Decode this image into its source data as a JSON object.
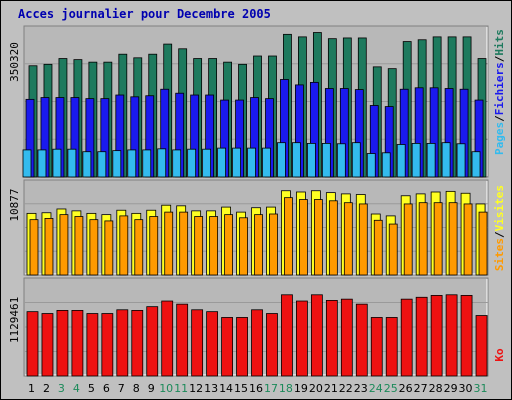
{
  "title": "Acces journalier pour Decembre 2005",
  "colors": {
    "background": "#c0c0c0",
    "plot_bg": "#b8b8b8",
    "pages": "#33bbee",
    "fichiers": "#1a1aee",
    "hits": "#1e7a5e",
    "visites": "#ffff22",
    "sites": "#ff9a00",
    "ko": "#ee1111",
    "weekday_label": "#000000",
    "weekend_label": "#1c8a5a"
  },
  "chart_data": [
    {
      "type": "bar",
      "panel": "hits",
      "ylabel_value": "350320",
      "ymax": 350320,
      "categories": [
        "1",
        "2",
        "3",
        "4",
        "5",
        "6",
        "7",
        "8",
        "9",
        "10",
        "11",
        "12",
        "13",
        "14",
        "15",
        "16",
        "17",
        "18",
        "19",
        "20",
        "21",
        "22",
        "23",
        "24",
        "25",
        "26",
        "27",
        "28",
        "29",
        "30",
        "31"
      ],
      "series": [
        {
          "name": "Pages",
          "values": [
            75000,
            75000,
            77000,
            77000,
            70000,
            70000,
            73000,
            75000,
            75000,
            78000,
            75000,
            77000,
            77000,
            80000,
            80000,
            80000,
            80000,
            95000,
            95000,
            93000,
            93000,
            92000,
            95000,
            65000,
            67000,
            90000,
            93000,
            93000,
            95000,
            92000,
            70000
          ]
        },
        {
          "name": "Fichiers",
          "values": [
            215000,
            220000,
            220000,
            220000,
            217000,
            217000,
            227000,
            222000,
            225000,
            243000,
            232000,
            227000,
            227000,
            213000,
            213000,
            220000,
            217000,
            270000,
            255000,
            262000,
            245000,
            245000,
            242000,
            198000,
            195000,
            243000,
            247000,
            247000,
            245000,
            243000,
            213000
          ]
        },
        {
          "name": "Hits",
          "values": [
            308000,
            312000,
            328000,
            325000,
            318000,
            318000,
            340000,
            330000,
            340000,
            368000,
            355000,
            328000,
            328000,
            318000,
            312000,
            335000,
            335000,
            395000,
            388000,
            400000,
            383000,
            385000,
            385000,
            305000,
            300000,
            375000,
            380000,
            388000,
            388000,
            388000,
            328000
          ]
        }
      ]
    },
    {
      "type": "bar",
      "panel": "visits",
      "ylabel_value": "10877",
      "ymax": 10877,
      "categories": [
        "1",
        "2",
        "3",
        "4",
        "5",
        "6",
        "7",
        "8",
        "9",
        "10",
        "11",
        "12",
        "13",
        "14",
        "15",
        "16",
        "17",
        "18",
        "19",
        "20",
        "21",
        "22",
        "23",
        "24",
        "25",
        "26",
        "27",
        "28",
        "29",
        "30",
        "31"
      ],
      "series": [
        {
          "name": "Visites",
          "values": [
            9800,
            9900,
            10500,
            10200,
            9800,
            9600,
            10300,
            9800,
            10300,
            11100,
            11000,
            10200,
            10200,
            10800,
            10000,
            10700,
            10800,
            13400,
            13200,
            13400,
            13100,
            12900,
            12800,
            9700,
            9400,
            12600,
            12900,
            13200,
            13300,
            13000,
            11300
          ]
        },
        {
          "name": "Sites",
          "values": [
            8800,
            9000,
            9600,
            9300,
            8800,
            8600,
            9400,
            8800,
            9300,
            10000,
            10000,
            9300,
            9300,
            9600,
            9100,
            9600,
            9700,
            12300,
            12000,
            12000,
            11800,
            11500,
            11300,
            8700,
            8100,
            11300,
            11500,
            11500,
            11500,
            11300,
            10000
          ]
        }
      ]
    },
    {
      "type": "bar",
      "panel": "kbytes",
      "ylabel_value": "1129461",
      "ymax": 1129461,
      "categories": [
        "1",
        "2",
        "3",
        "4",
        "5",
        "6",
        "7",
        "8",
        "9",
        "10",
        "11",
        "12",
        "13",
        "14",
        "15",
        "16",
        "17",
        "18",
        "19",
        "20",
        "21",
        "22",
        "23",
        "24",
        "25",
        "26",
        "27",
        "28",
        "29",
        "30",
        "31"
      ],
      "series": [
        {
          "name": "Ko",
          "values": [
            1030000,
            1000000,
            1050000,
            1050000,
            1000000,
            1000000,
            1060000,
            1050000,
            1110000,
            1200000,
            1150000,
            1060000,
            1030000,
            937000,
            937000,
            1060000,
            1000000,
            1300000,
            1200000,
            1300000,
            1210000,
            1230000,
            1150000,
            937000,
            937000,
            1230000,
            1260000,
            1290000,
            1300000,
            1290000,
            968000
          ]
        }
      ]
    }
  ],
  "legend": {
    "panel1": [
      "Pages",
      "Fichiers",
      "Hits"
    ],
    "panel2": [
      "Sites",
      "Visites"
    ],
    "panel3": [
      "Ko"
    ]
  },
  "weekend_days": [
    "3",
    "4",
    "10",
    "11",
    "17",
    "18",
    "24",
    "25",
    "31"
  ]
}
